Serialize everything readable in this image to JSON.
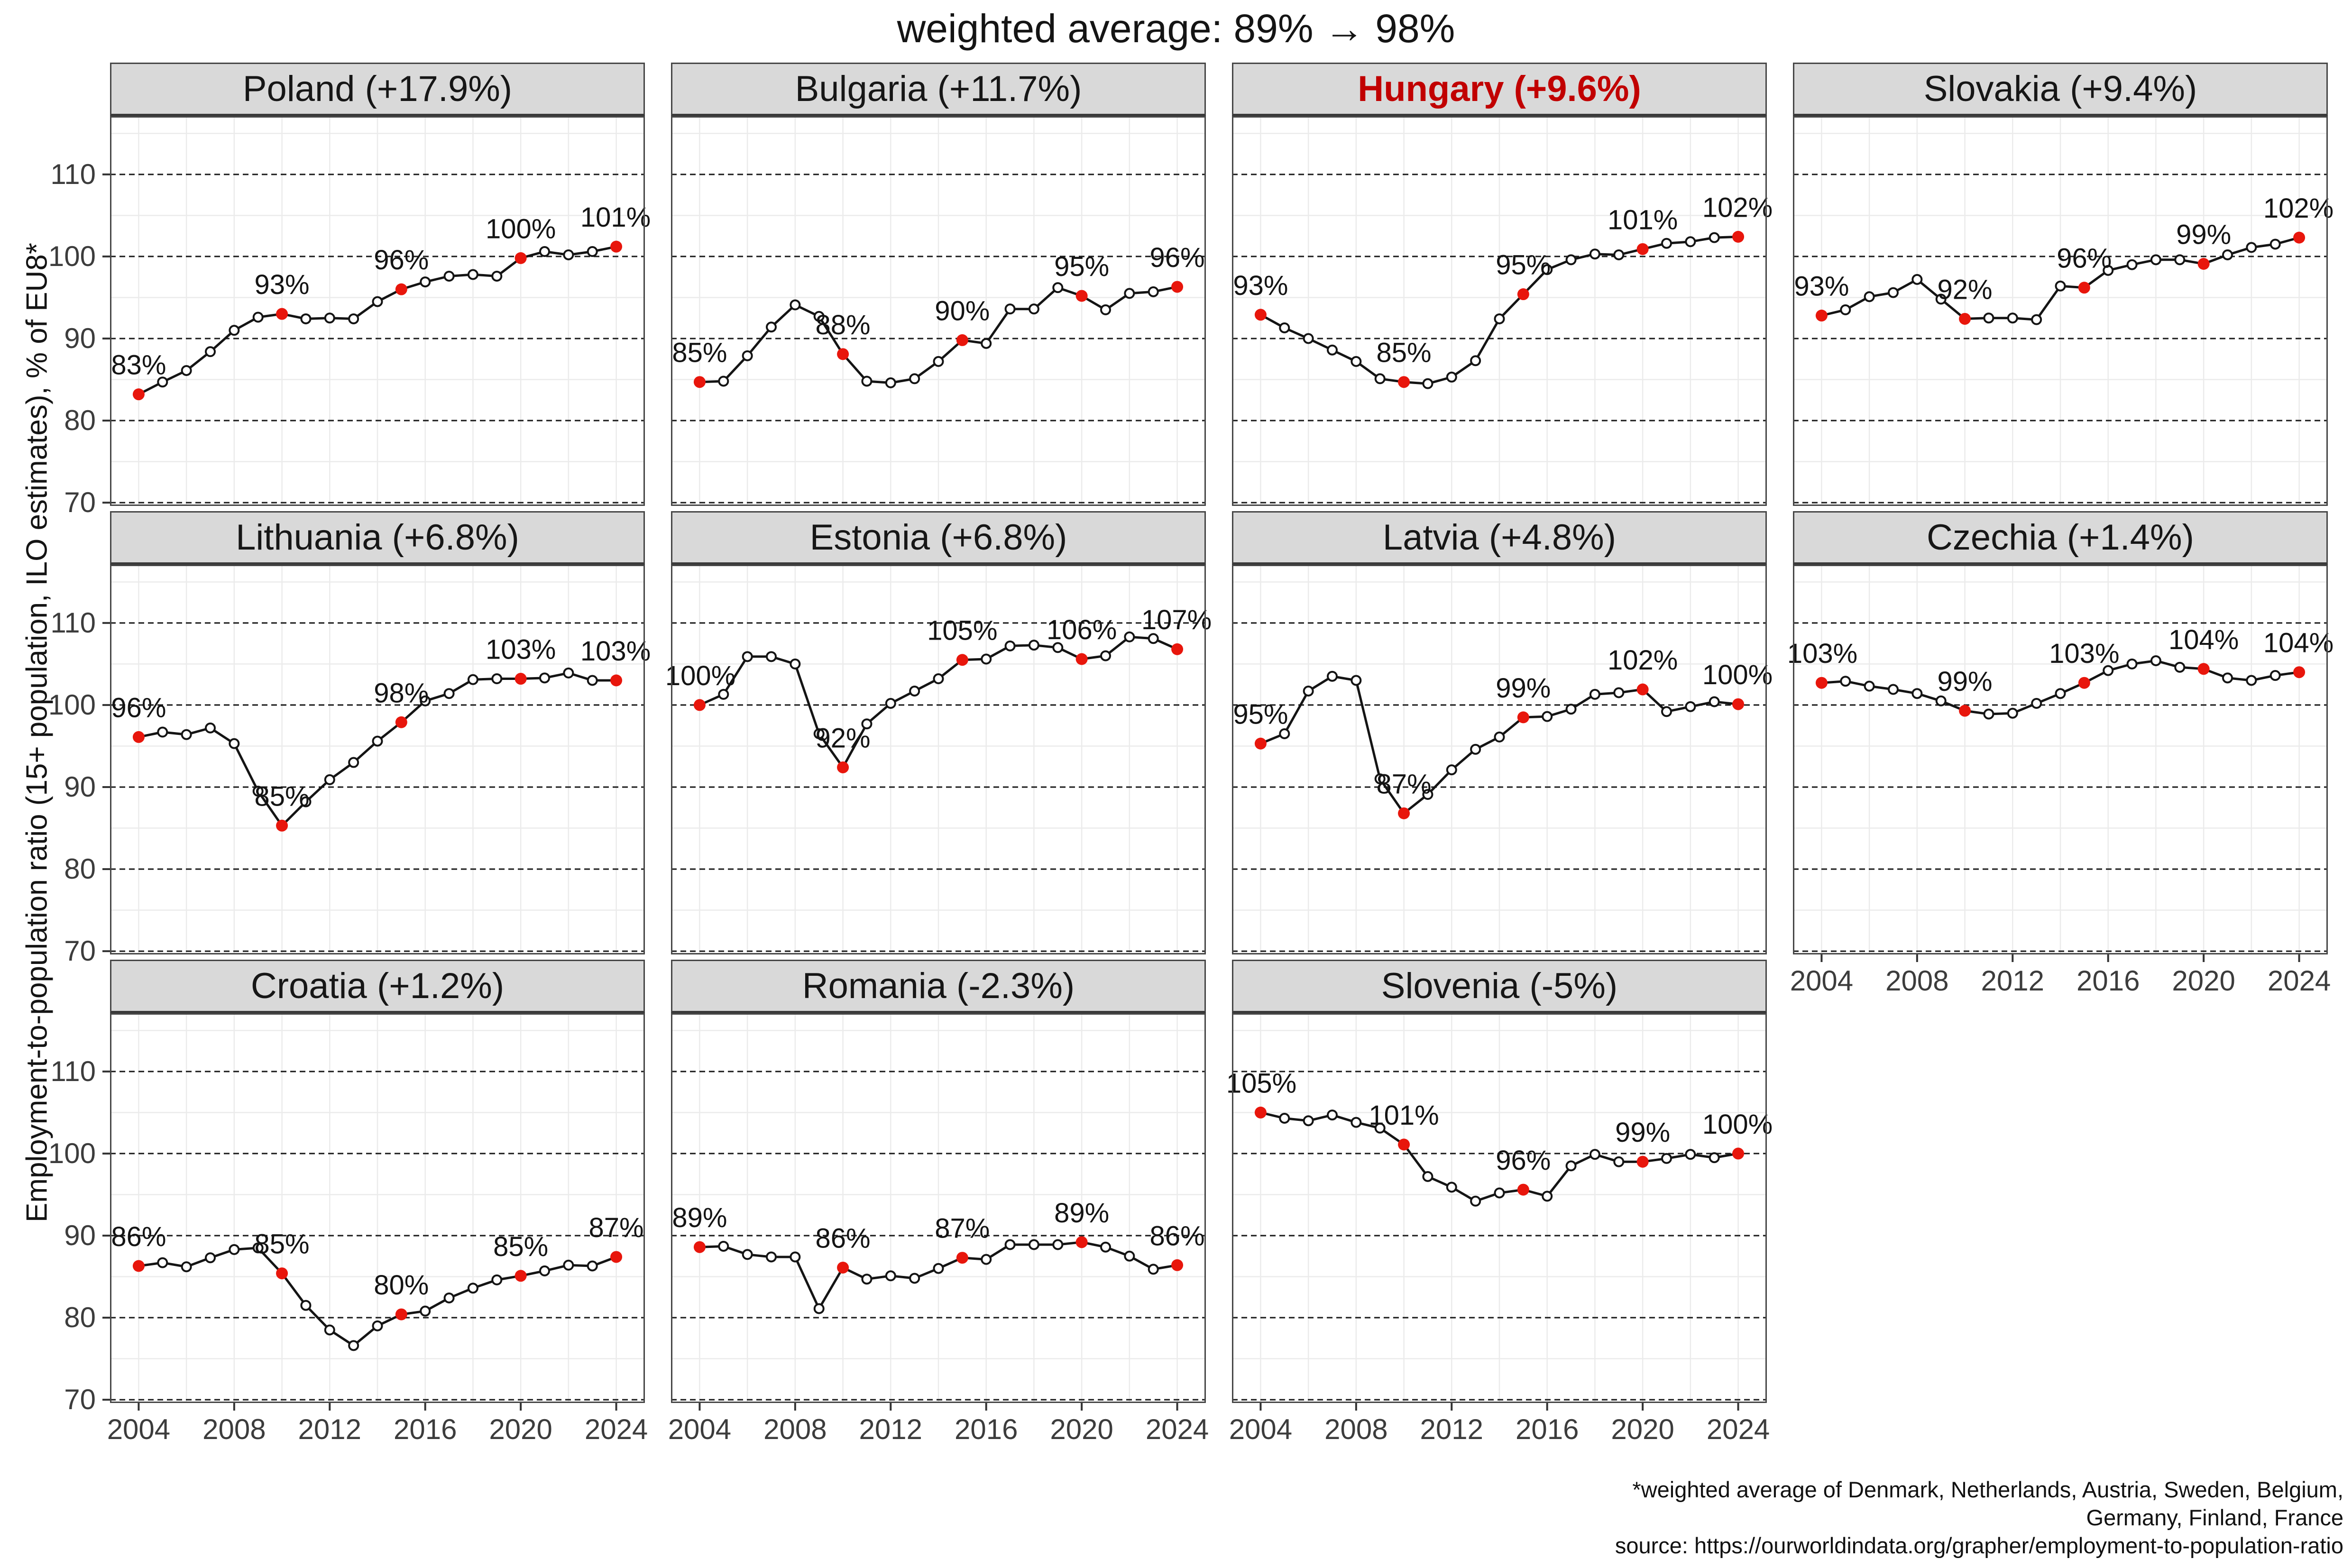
{
  "title": "weighted average: 89% → 98%",
  "footnote": {
    "line1": "*weighted average of Denmark, Netherlands, Austria, Sweden, Belgium,",
    "line2": "Germany, Finland, France",
    "line3": "source: https://ourworldindata.org/grapher/employment-to-population-ratio"
  },
  "chart_data": {
    "type": "line",
    "title": "weighted average: 89% → 98%",
    "xlabel": "",
    "ylabel": "Employment-to-population ratio (15+ population, ILO estimates), % of EU8*",
    "x": [
      2004,
      2005,
      2006,
      2007,
      2008,
      2009,
      2010,
      2011,
      2012,
      2013,
      2014,
      2015,
      2016,
      2017,
      2018,
      2019,
      2020,
      2021,
      2022,
      2023,
      2024
    ],
    "x_ticks": [
      2004,
      2008,
      2012,
      2016,
      2020,
      2024
    ],
    "y_ticks": [
      110,
      100,
      90,
      80,
      70
    ],
    "y_minor_gridlines": [
      75,
      85,
      95,
      105,
      115
    ],
    "x_gridline_years": [
      2004,
      2006,
      2008,
      2010,
      2012,
      2014,
      2016,
      2018,
      2020,
      2022,
      2024
    ],
    "xlim": [
      2002.8,
      2025.2
    ],
    "ylim": [
      69.6,
      117.1
    ],
    "grid": "light gray grid; black dashed horizontal lines at major y ticks",
    "legend_position": "none",
    "highlight_years": [
      2004,
      2010,
      2015,
      2020,
      2024
    ],
    "colors": {
      "line": "#141414",
      "highlight_red": "#e8160c",
      "hungary_title_red": "#c10000",
      "panel_header_bg": "#d9d9d9",
      "panel_border": "#474747",
      "gridline": "#ebebeb",
      "axis_text": "#3c3c3c"
    },
    "panels": [
      {
        "country": "Poland",
        "title": "Poland (+17.9%)",
        "highlight": false,
        "show_x_axis": false,
        "values": [
          83.2,
          84.7,
          86.1,
          88.4,
          91,
          92.6,
          93,
          92.4,
          92.5,
          92.4,
          94.5,
          96,
          96.9,
          97.6,
          97.8,
          97.6,
          99.8,
          100.6,
          100.2,
          100.6,
          101.2
        ],
        "point_labels": [
          "83%",
          "93%",
          "96%",
          "100%",
          "101%"
        ]
      },
      {
        "country": "Bulgaria",
        "title": "Bulgaria (+11.7%)",
        "highlight": false,
        "show_x_axis": false,
        "values": [
          84.7,
          84.8,
          87.9,
          91.4,
          94.1,
          92.7,
          88.1,
          84.8,
          84.6,
          85.1,
          87.2,
          89.8,
          89.4,
          93.6,
          93.6,
          96.2,
          95.2,
          93.5,
          95.5,
          95.7,
          96.3
        ],
        "point_labels": [
          "85%",
          "88%",
          "90%",
          "95%",
          "96%"
        ]
      },
      {
        "country": "Hungary",
        "title": "Hungary (+9.6%)",
        "highlight": true,
        "show_x_axis": false,
        "values": [
          92.9,
          91.3,
          90,
          88.6,
          87.2,
          85.1,
          84.7,
          84.5,
          85.3,
          87.3,
          92.4,
          95.4,
          98.4,
          99.6,
          100.3,
          100.2,
          100.9,
          101.6,
          101.8,
          102.3,
          102.4
        ],
        "point_labels": [
          "93%",
          "85%",
          "95%",
          "101%",
          "102%"
        ]
      },
      {
        "country": "Slovakia",
        "title": "Slovakia (+9.4%)",
        "highlight": false,
        "show_x_axis": false,
        "values": [
          92.8,
          93.5,
          95.1,
          95.6,
          97.2,
          94.8,
          92.4,
          92.5,
          92.5,
          92.3,
          96.4,
          96.2,
          98.3,
          99,
          99.6,
          99.6,
          99.1,
          100.2,
          101.1,
          101.5,
          102.3
        ],
        "point_labels": [
          "93%",
          "92%",
          "96%",
          "99%",
          "102%"
        ]
      },
      {
        "country": "Lithuania",
        "title": "Lithuania (+6.8%)",
        "highlight": false,
        "show_x_axis": false,
        "values": [
          96.1,
          96.7,
          96.4,
          97.2,
          95.3,
          89.5,
          85.3,
          88.2,
          90.9,
          93,
          95.6,
          97.9,
          100.5,
          101.4,
          103.1,
          103.2,
          103.2,
          103.3,
          103.9,
          103,
          103
        ],
        "point_labels": [
          "96%",
          "85%",
          "98%",
          "103%",
          "103%"
        ]
      },
      {
        "country": "Estonia",
        "title": "Estonia (+6.8%)",
        "highlight": false,
        "show_x_axis": false,
        "values": [
          100,
          101.3,
          105.9,
          105.9,
          105,
          96.5,
          92.4,
          97.7,
          100.2,
          101.7,
          103.2,
          105.5,
          105.6,
          107.2,
          107.3,
          107,
          105.6,
          106,
          108.3,
          108.1,
          106.8
        ],
        "point_labels": [
          "100%",
          "92%",
          "105%",
          "106%",
          "107%"
        ]
      },
      {
        "country": "Latvia",
        "title": "Latvia (+4.8%)",
        "highlight": false,
        "show_x_axis": false,
        "values": [
          95.3,
          96.5,
          101.7,
          103.5,
          103,
          91,
          86.8,
          89.1,
          92.1,
          94.6,
          96.1,
          98.5,
          98.6,
          99.5,
          101.3,
          101.5,
          101.9,
          99.2,
          99.8,
          100.4,
          100.1
        ],
        "point_labels": [
          "95%",
          "87%",
          "99%",
          "102%",
          "100%"
        ]
      },
      {
        "country": "Czechia",
        "title": "Czechia (+1.4%)",
        "highlight": false,
        "show_x_axis": true,
        "values": [
          102.7,
          102.9,
          102.3,
          101.9,
          101.4,
          100.5,
          99.3,
          98.9,
          99,
          100.2,
          101.4,
          102.7,
          104.2,
          105,
          105.4,
          104.6,
          104.4,
          103.3,
          103,
          103.6,
          104
        ],
        "point_labels": [
          "103%",
          "99%",
          "103%",
          "104%",
          "104%"
        ]
      },
      {
        "country": "Croatia",
        "title": "Croatia (+1.2%)",
        "highlight": false,
        "show_x_axis": true,
        "values": [
          86.3,
          86.7,
          86.2,
          87.3,
          88.3,
          88.5,
          85.4,
          81.5,
          78.5,
          76.6,
          79,
          80.4,
          80.8,
          82.4,
          83.6,
          84.6,
          85.1,
          85.7,
          86.4,
          86.3,
          87.4
        ],
        "point_labels": [
          "86%",
          "85%",
          "80%",
          "85%",
          "87%"
        ]
      },
      {
        "country": "Romania",
        "title": "Romania (-2.3%)",
        "highlight": false,
        "show_x_axis": true,
        "values": [
          88.6,
          88.7,
          87.7,
          87.4,
          87.4,
          81.1,
          86.1,
          84.7,
          85.1,
          84.8,
          86,
          87.3,
          87.1,
          88.9,
          88.9,
          88.9,
          89.2,
          88.6,
          87.5,
          85.9,
          86.4
        ],
        "point_labels": [
          "89%",
          "86%",
          "87%",
          "89%",
          "86%"
        ]
      },
      {
        "country": "Slovenia",
        "title": "Slovenia (-5%)",
        "highlight": false,
        "show_x_axis": true,
        "values": [
          105,
          104.3,
          104,
          104.7,
          103.8,
          103.1,
          101.1,
          97.2,
          95.9,
          94.2,
          95.2,
          95.6,
          94.8,
          98.5,
          99.9,
          99,
          99,
          99.4,
          99.9,
          99.5,
          100
        ],
        "point_labels": [
          "105%",
          "101%",
          "96%",
          "99%",
          "100%"
        ]
      }
    ]
  }
}
